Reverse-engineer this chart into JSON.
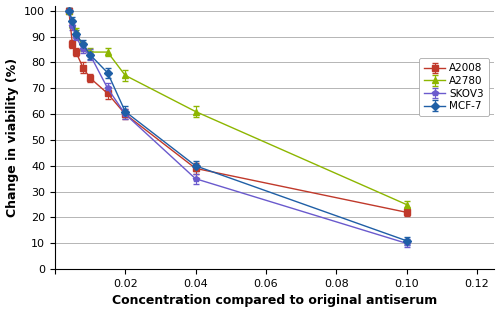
{
  "series": {
    "A2008": {
      "x": [
        0.004,
        0.005,
        0.006,
        0.008,
        0.01,
        0.015,
        0.02,
        0.04,
        0.1
      ],
      "y": [
        100,
        87,
        84,
        78,
        74,
        68,
        60,
        39,
        22
      ],
      "yerr": [
        1.0,
        1.5,
        1.5,
        2.0,
        1.5,
        2.0,
        2.0,
        2.0,
        1.5
      ],
      "color": "#c0392b",
      "marker": "s",
      "markersize": 4
    },
    "A2780": {
      "x": [
        0.004,
        0.005,
        0.006,
        0.008,
        0.01,
        0.015,
        0.02,
        0.04,
        0.1
      ],
      "y": [
        100,
        95,
        92,
        86,
        84,
        84,
        75,
        61,
        25
      ],
      "yerr": [
        1.0,
        1.5,
        1.5,
        1.5,
        1.5,
        1.5,
        2.0,
        2.0,
        1.5
      ],
      "color": "#8db600",
      "marker": "^",
      "markersize": 5
    },
    "SKOV3": {
      "x": [
        0.004,
        0.005,
        0.006,
        0.008,
        0.01,
        0.015,
        0.02,
        0.04,
        0.1
      ],
      "y": [
        100,
        94,
        90,
        85,
        83,
        70,
        60,
        35,
        10
      ],
      "yerr": [
        1.0,
        1.5,
        1.5,
        1.5,
        2.0,
        2.0,
        2.0,
        2.0,
        1.5
      ],
      "color": "#6a5acd",
      "marker": "p",
      "markersize": 4
    },
    "MCF-7": {
      "x": [
        0.004,
        0.005,
        0.006,
        0.008,
        0.01,
        0.015,
        0.02,
        0.04,
        0.1
      ],
      "y": [
        100,
        96,
        91,
        87,
        83,
        76,
        61,
        40,
        11
      ],
      "yerr": [
        1.0,
        1.5,
        1.5,
        1.5,
        1.5,
        2.0,
        2.0,
        2.0,
        1.5
      ],
      "color": "#1f5fa6",
      "marker": "D",
      "markersize": 4
    }
  },
  "xlabel": "Concentration compared to original antiserum",
  "ylabel": "Change in viability (%)",
  "xlim": [
    0,
    0.125
  ],
  "ylim": [
    0,
    102
  ],
  "xticks": [
    0.0,
    0.02,
    0.04,
    0.06,
    0.08,
    0.1,
    0.12
  ],
  "yticks": [
    0,
    10,
    20,
    30,
    40,
    50,
    60,
    70,
    80,
    90,
    100
  ],
  "grid_color": "#aaaaaa",
  "background_color": "#ffffff",
  "legend_order": [
    "A2008",
    "A2780",
    "SKOV3",
    "MCF-7"
  ]
}
